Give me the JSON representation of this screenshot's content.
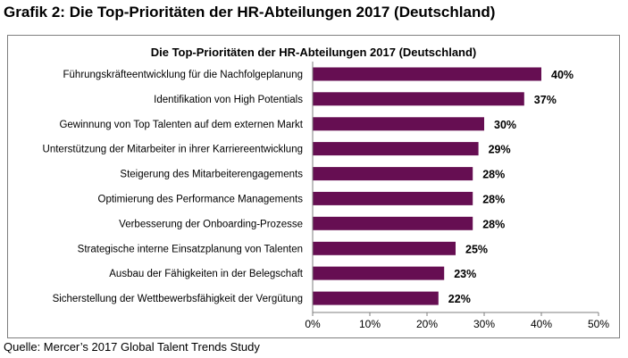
{
  "heading": "Grafik 2: Die Top-Prioritäten der HR-Abteilungen 2017 (Deutschland)",
  "source": "Quelle: Mercer’s 2017 Global Talent Trends Study",
  "bar_color": "#660e52",
  "chart_data": {
    "type": "bar",
    "orientation": "horizontal",
    "title": "Die Top-Prioritäten der HR-Abteilungen 2017 (Deutschland)",
    "xlabel": "",
    "ylabel": "",
    "xlim": [
      0,
      50
    ],
    "ticks": [
      "0%",
      "10%",
      "20%",
      "30%",
      "40%",
      "50%"
    ],
    "tick_values": [
      0,
      10,
      20,
      30,
      40,
      50
    ],
    "categories": [
      "Führungskräfteentwicklung für die Nachfolgeplanung",
      "Identifikation von High Potentials",
      "Gewinnung von Top Talenten auf dem externen Markt",
      "Unterstützung der Mitarbeiter in ihrer Karriereentwicklung",
      "Steigerung des Mitarbeiterengagements",
      "Optimierung des Performance Managements",
      "Verbesserung der Onboarding-Prozesse",
      "Strategische interne Einsatzplanung von Talenten",
      "Ausbau der Fähigkeiten in der Belegschaft",
      "Sicherstellung der Wettbewerbsfähigkeit der Vergütung"
    ],
    "values": [
      40,
      37,
      30,
      29,
      28,
      28,
      28,
      25,
      23,
      22
    ],
    "value_labels": [
      "40%",
      "37%",
      "30%",
      "29%",
      "28%",
      "28%",
      "28%",
      "25%",
      "23%",
      "22%"
    ],
    "grid": false
  }
}
